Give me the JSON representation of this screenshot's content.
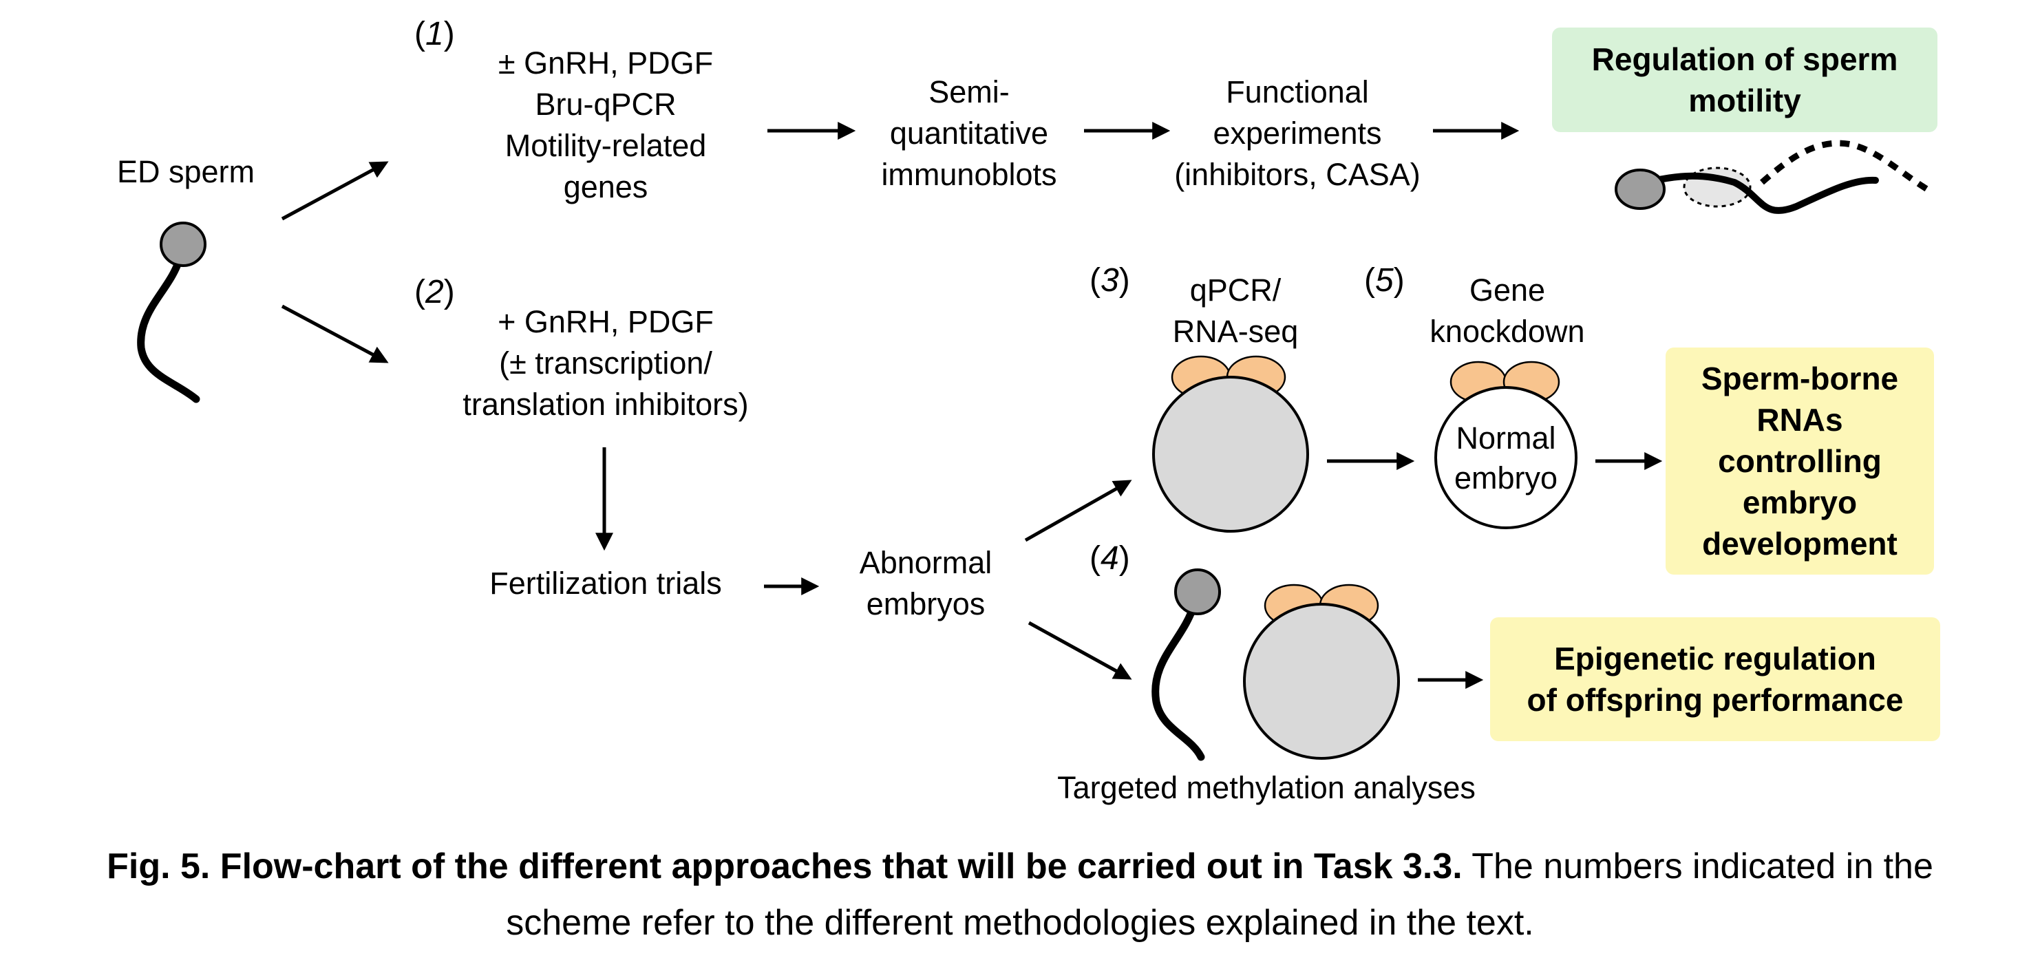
{
  "start": {
    "label": "ED sperm"
  },
  "branch1": {
    "number": "1",
    "treatment": "± GnRH, PDGF\nBru-qPCR\nMotility-related\ngenes",
    "step2": "Semi-\nquantitative\nimmunoblots",
    "step3": "Functional\nexperiments\n(inhibitors, CASA)",
    "outcome": "Regulation of sperm\nmotility"
  },
  "branch2": {
    "number": "2",
    "treatment": "+ GnRH, PDGF\n(± transcription/\ntranslation inhibitors)",
    "fertilization": "Fertilization trials",
    "abnormal": "Abnormal\nembryos"
  },
  "branch3": {
    "number": "3",
    "label": "qPCR/\nRNA-seq"
  },
  "branch5": {
    "number": "5",
    "label": "Gene\nknockdown",
    "embryo_label": "Normal\nembryo",
    "outcome": "Sperm-borne\nRNAs\ncontrolling\nembryo\ndevelopment"
  },
  "branch4": {
    "number": "4",
    "label": "Targeted methylation analyses",
    "outcome": "Epigenetic regulation\nof offspring performance"
  },
  "caption": {
    "bold": "Fig. 5. Flow-chart of the different approaches that will be carried out in Task 3.3.",
    "rest": " The numbers indicated in the scheme refer to the different methodologies explained in the text."
  },
  "colors": {
    "green_box": "#d8f2d8",
    "yellow_box": "#fdf7b8",
    "embryo_fill": "#d9d9d9",
    "polar_body": "#f8c48e",
    "sperm_head": "#9e9e9e"
  }
}
